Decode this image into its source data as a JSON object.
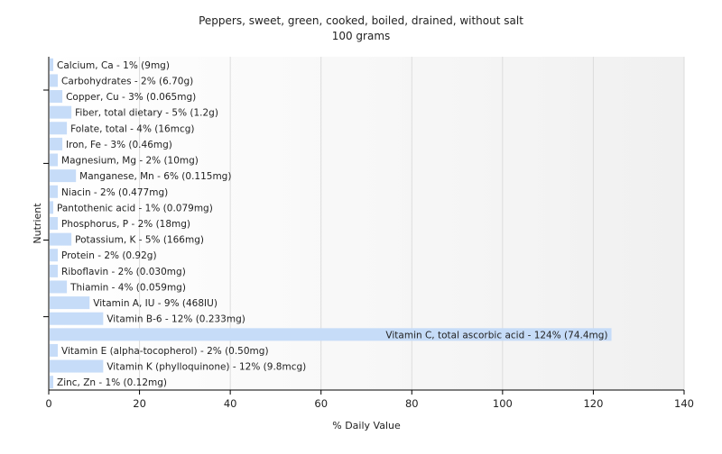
{
  "chart_data": {
    "type": "bar",
    "orientation": "horizontal",
    "title": "Peppers, sweet, green, cooked, boiled, drained, without salt",
    "subtitle": "100 grams",
    "xlabel": "% Daily Value",
    "ylabel": "Nutrient",
    "xlim": [
      0,
      140
    ],
    "xticks": [
      0,
      20,
      40,
      60,
      80,
      100,
      120,
      140
    ],
    "grid": true,
    "bar_color": "#c6dcf8",
    "categories": [
      "Calcium, Ca",
      "Carbohydrates",
      "Copper, Cu",
      "Fiber, total dietary",
      "Folate, total",
      "Iron, Fe",
      "Magnesium, Mg",
      "Manganese, Mn",
      "Niacin",
      "Pantothenic acid",
      "Phosphorus, P",
      "Potassium, K",
      "Protein",
      "Riboflavin",
      "Thiamin",
      "Vitamin A, IU",
      "Vitamin B-6",
      "Vitamin C, total ascorbic acid",
      "Vitamin E (alpha-tocopherol)",
      "Vitamin K (phylloquinone)",
      "Zinc, Zn"
    ],
    "values": [
      1,
      2,
      3,
      5,
      4,
      3,
      2,
      6,
      2,
      1,
      2,
      5,
      2,
      2,
      4,
      9,
      12,
      124,
      2,
      12,
      1
    ],
    "labels": [
      "Calcium, Ca - 1% (9mg)",
      "Carbohydrates - 2% (6.70g)",
      "Copper, Cu - 3% (0.065mg)",
      "Fiber, total dietary - 5% (1.2g)",
      "Folate, total - 4% (16mcg)",
      "Iron, Fe - 3% (0.46mg)",
      "Magnesium, Mg - 2% (10mg)",
      "Manganese, Mn - 6% (0.115mg)",
      "Niacin - 2% (0.477mg)",
      "Pantothenic acid - 1% (0.079mg)",
      "Phosphorus, P - 2% (18mg)",
      "Potassium, K - 5% (166mg)",
      "Protein - 2% (0.92g)",
      "Riboflavin - 2% (0.030mg)",
      "Thiamin - 4% (0.059mg)",
      "Vitamin A, IU - 9% (468IU)",
      "Vitamin B-6 - 12% (0.233mg)",
      "Vitamin C, total ascorbic acid - 124% (74.4mg)",
      "Vitamin E (alpha-tocopherol) - 2% (0.50mg)",
      "Vitamin K (phylloquinone) - 12% (9.8mcg)",
      "Zinc, Zn - 1% (0.12mg)"
    ]
  }
}
